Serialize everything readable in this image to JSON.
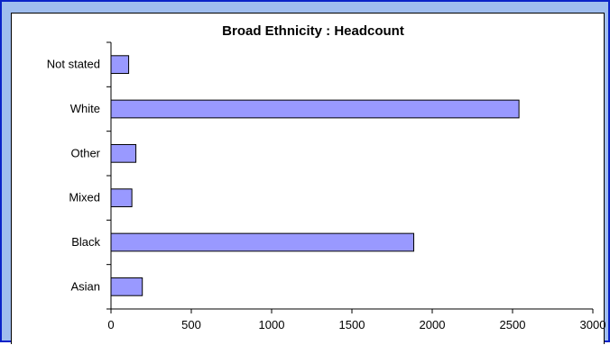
{
  "chart_data": {
    "type": "bar",
    "orientation": "horizontal",
    "title": "Broad Ethnicity : Headcount",
    "categories": [
      "Not stated",
      "White",
      "Other",
      "Mixed",
      "Black",
      "Asian"
    ],
    "values": [
      110,
      2540,
      155,
      130,
      1885,
      195
    ],
    "xlim": [
      0,
      3000
    ],
    "xticks": [
      "0",
      "500",
      "1000",
      "1500",
      "2000",
      "2500",
      "3000"
    ],
    "xlabel": "",
    "ylabel": "",
    "grid": false,
    "legend": "none",
    "bar_color": "#9999ff",
    "bar_edge_color": "#000000",
    "frame_color": "#9fbdee",
    "frame_border_color": "#0a22c8"
  }
}
